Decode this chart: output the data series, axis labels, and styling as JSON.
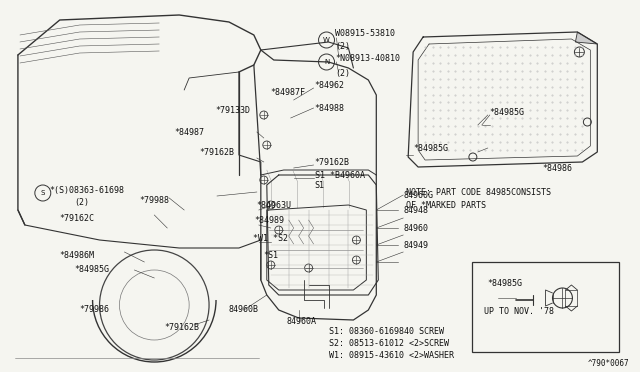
{
  "bg_color": "#f5f5f0",
  "fig_width": 6.4,
  "fig_height": 3.72,
  "dpi": 100,
  "diagram_ref": "^790*0067",
  "note_line1": "NOTE: PART CODE 84985CONSISTS",
  "note_line2": "OF *MARKED PARTS",
  "legend_line1": "S1: 08360-6169840 SCREW",
  "legend_line2": "S2: 08513-61012 <2>SCREW",
  "legend_line3": "W1: 08915-43610 <2>WASHER",
  "inset_text": "UP TO NOV. '78",
  "car_body_color": "#222222",
  "line_color": "#333333",
  "text_color": "#111111",
  "dot_color": "#999999"
}
